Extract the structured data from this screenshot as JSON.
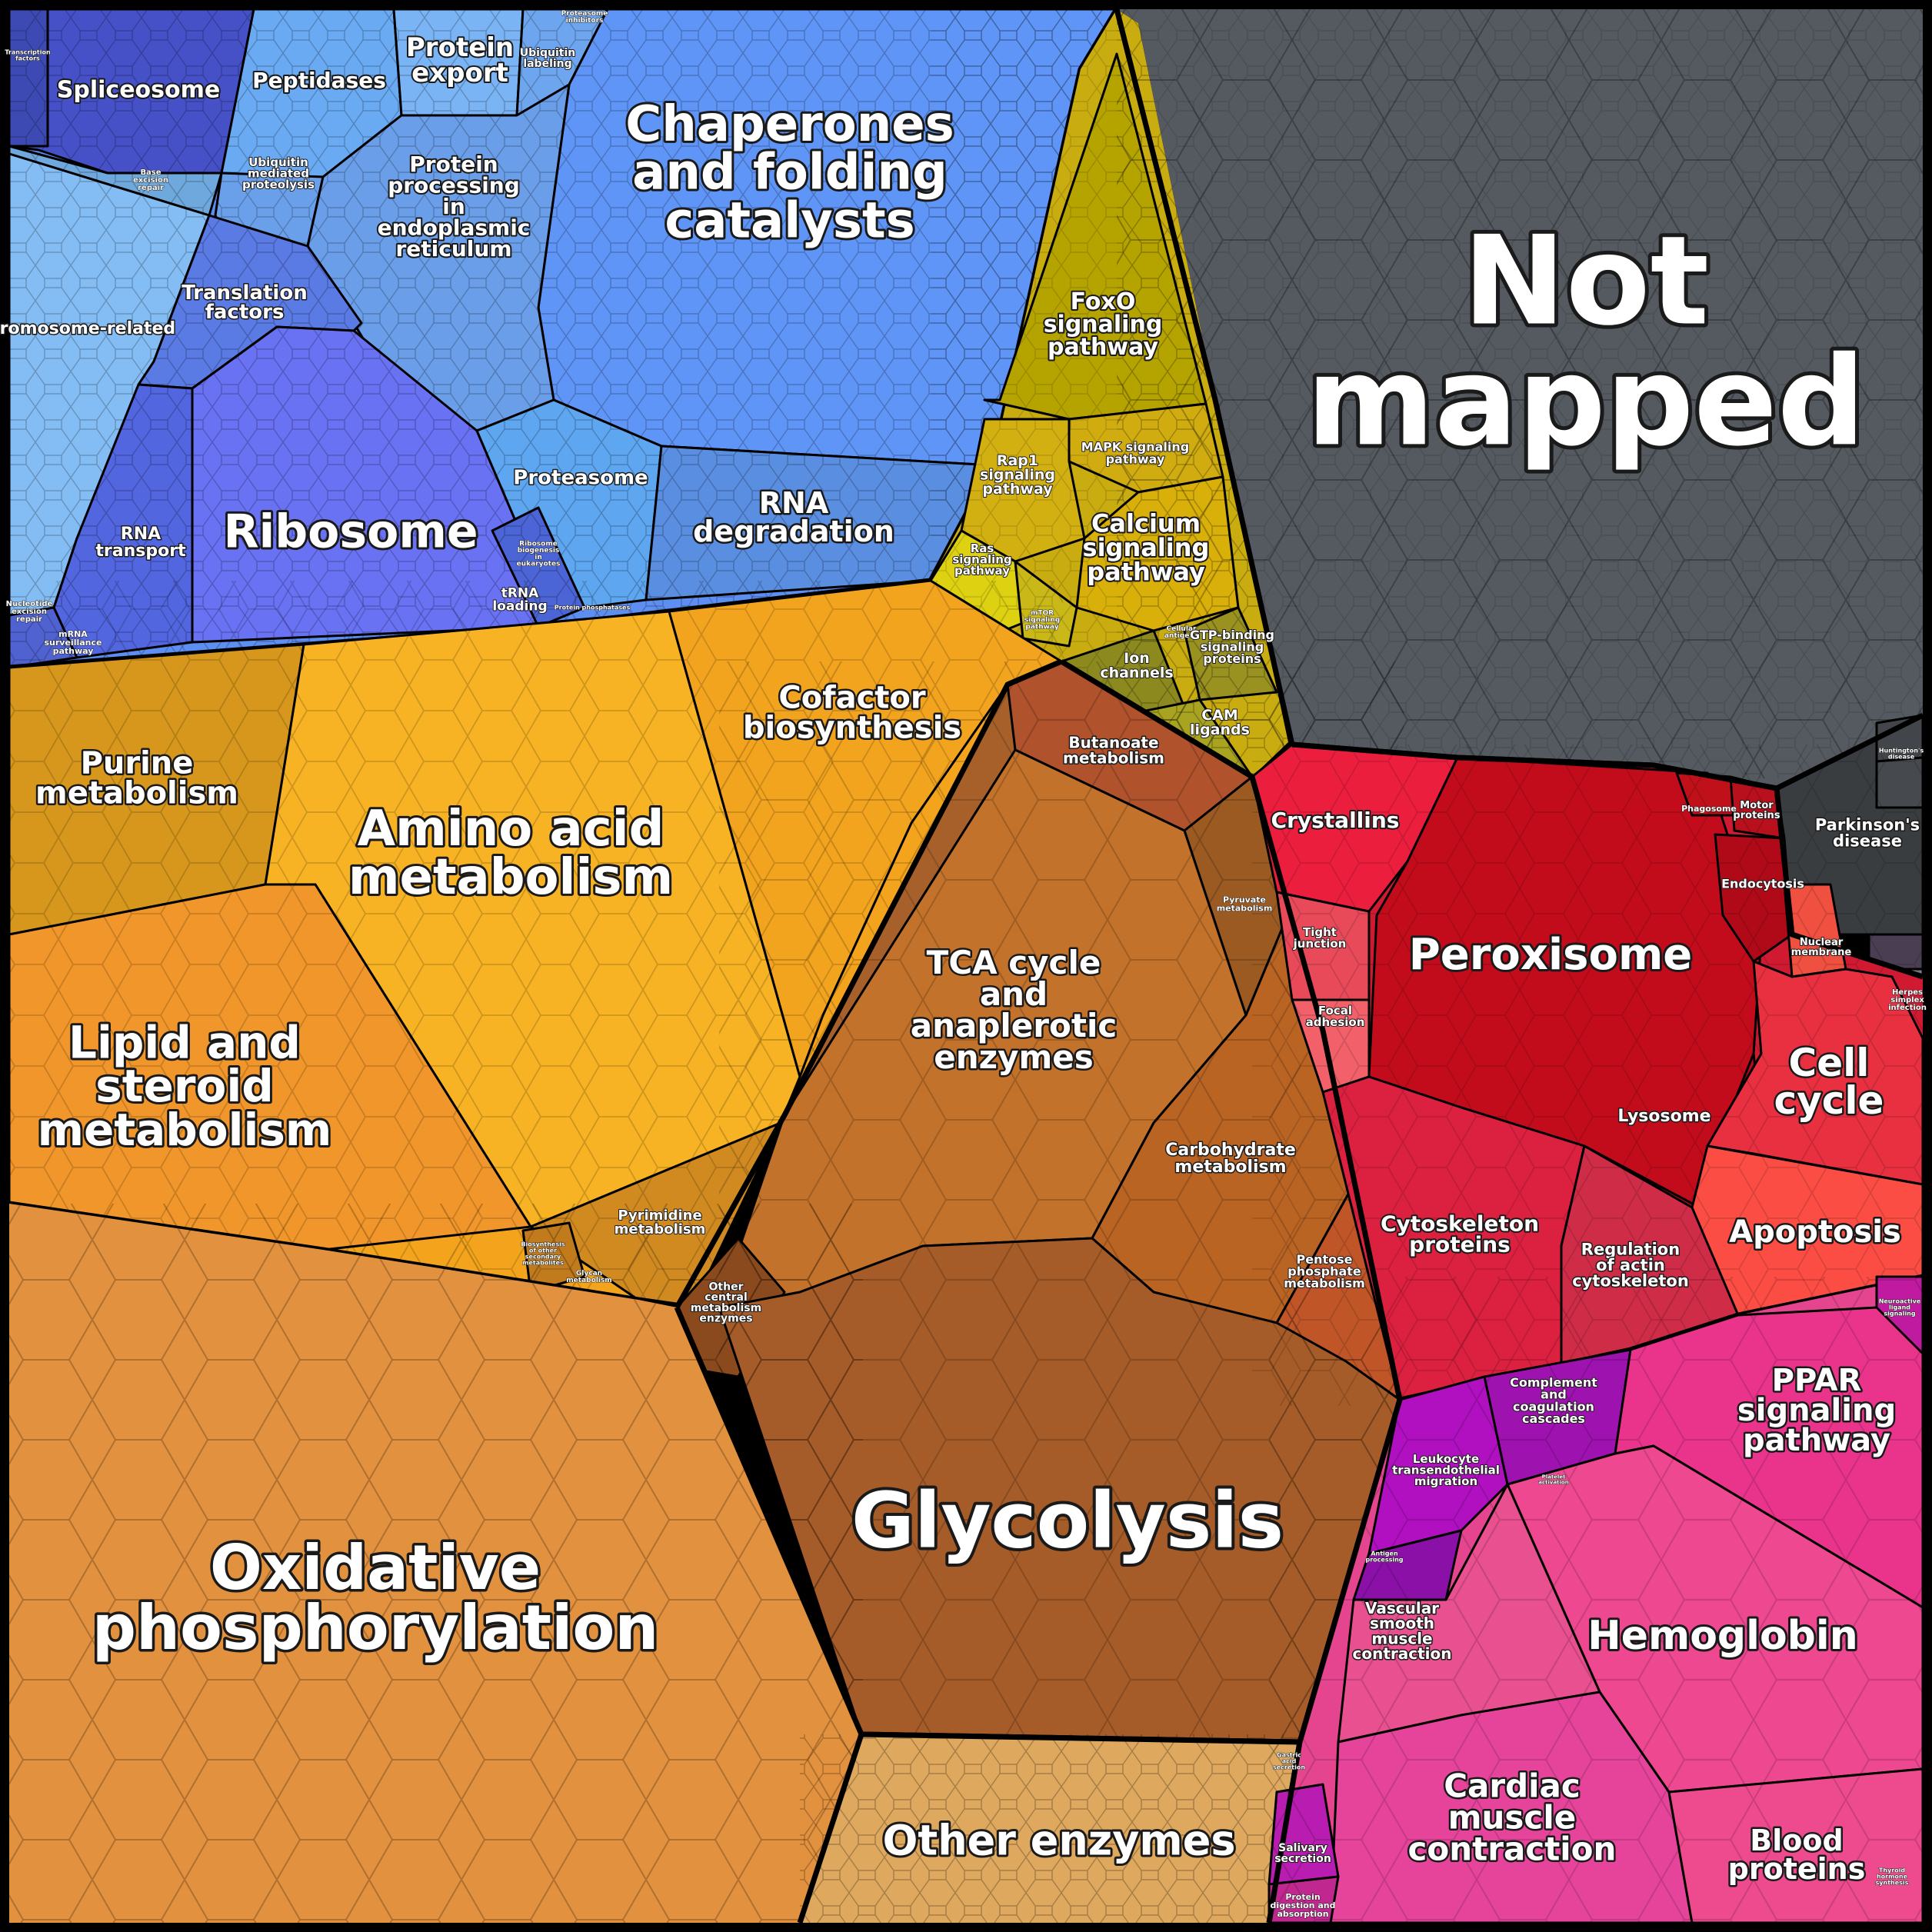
{
  "colors": {
    "genetic_information_processing": "#5b8ff0",
    "signaling": "#c9b310",
    "not_mapped": "#555a60",
    "metabolism_orange": "#f0a020",
    "metabolism_brown": "#a86028",
    "oxidative": "#e0913e",
    "cellular_red": "#d01830",
    "organismal_pink": "#e03c8c",
    "outline": "#000000"
  },
  "labels": {
    "spliceosome": "Spliceosome",
    "peptidases": "Peptidases",
    "protein_export": "Protein export",
    "chaperones": "Chaperones and folding catalysts",
    "ubiquitin_labeling": "Ubiquitin labeling",
    "proteasome_inhibitors": "Proteasome inhibitors",
    "transcription_factors": "Transcription factors",
    "base_excision_repair": "Base excision repair",
    "ubiquitin_mediated_proteolysis": "Ubiquitin mediated proteolysis",
    "protein_processing_er": "Protein processing in endoplasmic reticulum",
    "chromosome_related": "Chromosome-related",
    "translation_factors": "Translation factors",
    "ribosome": "Ribosome",
    "rna_transport": "RNA transport",
    "proteasome": "Proteasome",
    "rna_degradation": "RNA degradation",
    "ribosome_biogenesis": "Ribosome biogenesis in eukaryotes",
    "trna_loading": "tRNA loading",
    "protein_phosphatases": "Protein phosphatases",
    "mismatch_repair": "Nucleotide excision repair",
    "mrna_surveillance": "mRNA surveillance pathway",
    "foxo": "FoxO signaling pathway",
    "mapk": "MAPK signaling pathway",
    "rap1": "Rap1 signaling pathway",
    "calcium": "Calcium signaling pathway",
    "ras": "Ras signaling pathway",
    "mtor": "mTOR signaling pathway",
    "cell_adhesion_molecules": "Cellular antigens",
    "ion_channels": "Ion channels",
    "gtp_binding": "GTP-binding signaling proteins",
    "cam_ligands": "CAM ligands",
    "not_mapped": "Not mapped",
    "purine": "Purine metabolism",
    "amino_acid": "Amino acid metabolism",
    "cofactor": "Cofactor biosynthesis",
    "butanoate": "Butanoate metabolism",
    "pyruvate": "Pyruvate metabolism",
    "lipid": "Lipid and steroid metabolism",
    "tca": "TCA cycle and anaplerotic enzymes",
    "carbohydrate": "Carbohydrate metabolism",
    "pyrimidine": "Pyrimidine metabolism",
    "biosynthesis_other": "Biosynthesis of other secondary metabolites",
    "glycan": "Glycan metabolism",
    "other_central": "Other central metabolism enzymes",
    "pentose": "Pentose phosphate metabolism",
    "glycolysis": "Glycolysis",
    "oxidative": "Oxidative phosphorylation",
    "other_enzymes": "Other enzymes",
    "crystallins": "Crystallins",
    "phagosome": "Phagosome",
    "motor_proteins": "Motor proteins",
    "endocytosis": "Endocytosis",
    "parkinsons": "Parkinson's disease",
    "alzheimers": "Alzheimer's disease",
    "huntingtons": "Huntington's disease",
    "tight_junction": "Tight junction",
    "peroxisome": "Peroxisome",
    "nuclear_membrane": "Nuclear membrane",
    "focal_adhesion": "Focal adhesion",
    "herpes": "Herpes simplex infection",
    "lysosome": "Lysosome",
    "cell_cycle": "Cell cycle",
    "cytoskeleton": "Cytoskeleton proteins",
    "regulation_actin": "Regulation of actin cytoskeleton",
    "apoptosis": "Apoptosis",
    "neuroactive": "Neuroactive ligand signaling",
    "complement": "Complement and coagulation cascades",
    "ppar": "PPAR signaling pathway",
    "leukocyte": "Leukocyte transendothelial migration",
    "platelet": "Platelet activation",
    "antigen": "Antigen processing",
    "hemoglobin": "Hemoglobin",
    "vascular": "Vascular smooth muscle contraction",
    "cardiac": "Cardiac muscle contraction",
    "blood_proteins": "Blood proteins",
    "salivary": "Salivary secretion",
    "protein_digestion": "Protein digestion and absorption",
    "thyroid": "Thyroid hormone synthesis",
    "gastric": "Gastric acid secretion"
  }
}
